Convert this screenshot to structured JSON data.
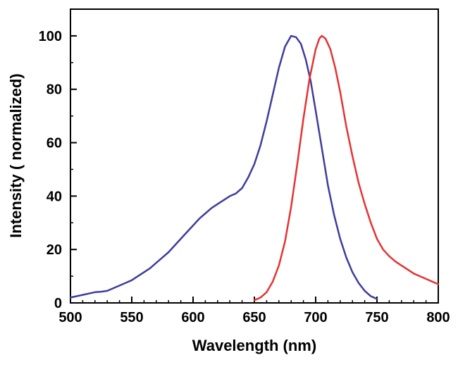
{
  "chart_data": {
    "type": "line",
    "title": "",
    "xlabel": "Wavelength (nm)",
    "ylabel": "Intensity ( normalized)",
    "xlim": [
      500,
      800
    ],
    "ylim": [
      0,
      110
    ],
    "xticks": [
      500,
      550,
      600,
      650,
      700,
      750,
      800
    ],
    "yticks": [
      0,
      20,
      40,
      60,
      80,
      100
    ],
    "xminor_step": 10,
    "yminor_step": 10,
    "grid": false,
    "legend": "none",
    "frame_color": "#000000",
    "background_color": "#ffffff",
    "series": [
      {
        "name": "blue",
        "description": "left spectrum, peak 680 nm",
        "color": "#3d3d9c",
        "points": [
          [
            500,
            2
          ],
          [
            505,
            2.5
          ],
          [
            510,
            3
          ],
          [
            515,
            3.5
          ],
          [
            520,
            4
          ],
          [
            525,
            4.2
          ],
          [
            530,
            4.5
          ],
          [
            535,
            5.5
          ],
          [
            540,
            6.5
          ],
          [
            545,
            7.5
          ],
          [
            550,
            8.5
          ],
          [
            555,
            10
          ],
          [
            560,
            11.5
          ],
          [
            565,
            13
          ],
          [
            570,
            15
          ],
          [
            575,
            17
          ],
          [
            580,
            19
          ],
          [
            585,
            21.5
          ],
          [
            590,
            24
          ],
          [
            595,
            26.5
          ],
          [
            600,
            29
          ],
          [
            605,
            31.5
          ],
          [
            610,
            33.5
          ],
          [
            615,
            35.5
          ],
          [
            620,
            37
          ],
          [
            625,
            38.5
          ],
          [
            630,
            40
          ],
          [
            635,
            41
          ],
          [
            640,
            43
          ],
          [
            645,
            47
          ],
          [
            650,
            52
          ],
          [
            655,
            59
          ],
          [
            660,
            68
          ],
          [
            665,
            78
          ],
          [
            670,
            88
          ],
          [
            675,
            96
          ],
          [
            680,
            100
          ],
          [
            684,
            99.5
          ],
          [
            688,
            97
          ],
          [
            692,
            91
          ],
          [
            696,
            83
          ],
          [
            700,
            72
          ],
          [
            705,
            58
          ],
          [
            710,
            44
          ],
          [
            715,
            33
          ],
          [
            720,
            24
          ],
          [
            725,
            17
          ],
          [
            730,
            11.5
          ],
          [
            735,
            7.5
          ],
          [
            740,
            4.5
          ],
          [
            745,
            2.5
          ],
          [
            750,
            1.5
          ]
        ]
      },
      {
        "name": "red",
        "description": "right spectrum, peak 705 nm",
        "color": "#e63232",
        "points": [
          [
            650,
            1
          ],
          [
            655,
            2
          ],
          [
            660,
            4
          ],
          [
            665,
            8
          ],
          [
            670,
            14
          ],
          [
            675,
            23
          ],
          [
            680,
            36
          ],
          [
            685,
            52
          ],
          [
            690,
            69
          ],
          [
            695,
            84
          ],
          [
            700,
            95
          ],
          [
            703,
            99
          ],
          [
            705,
            100
          ],
          [
            708,
            99
          ],
          [
            712,
            95
          ],
          [
            716,
            88
          ],
          [
            720,
            79
          ],
          [
            725,
            66
          ],
          [
            730,
            55
          ],
          [
            735,
            45
          ],
          [
            740,
            37
          ],
          [
            745,
            30
          ],
          [
            750,
            24
          ],
          [
            755,
            20
          ],
          [
            760,
            17.5
          ],
          [
            765,
            15.5
          ],
          [
            770,
            14
          ],
          [
            775,
            12.5
          ],
          [
            780,
            11
          ],
          [
            785,
            10
          ],
          [
            790,
            9
          ],
          [
            795,
            8
          ],
          [
            800,
            7
          ]
        ]
      }
    ]
  }
}
